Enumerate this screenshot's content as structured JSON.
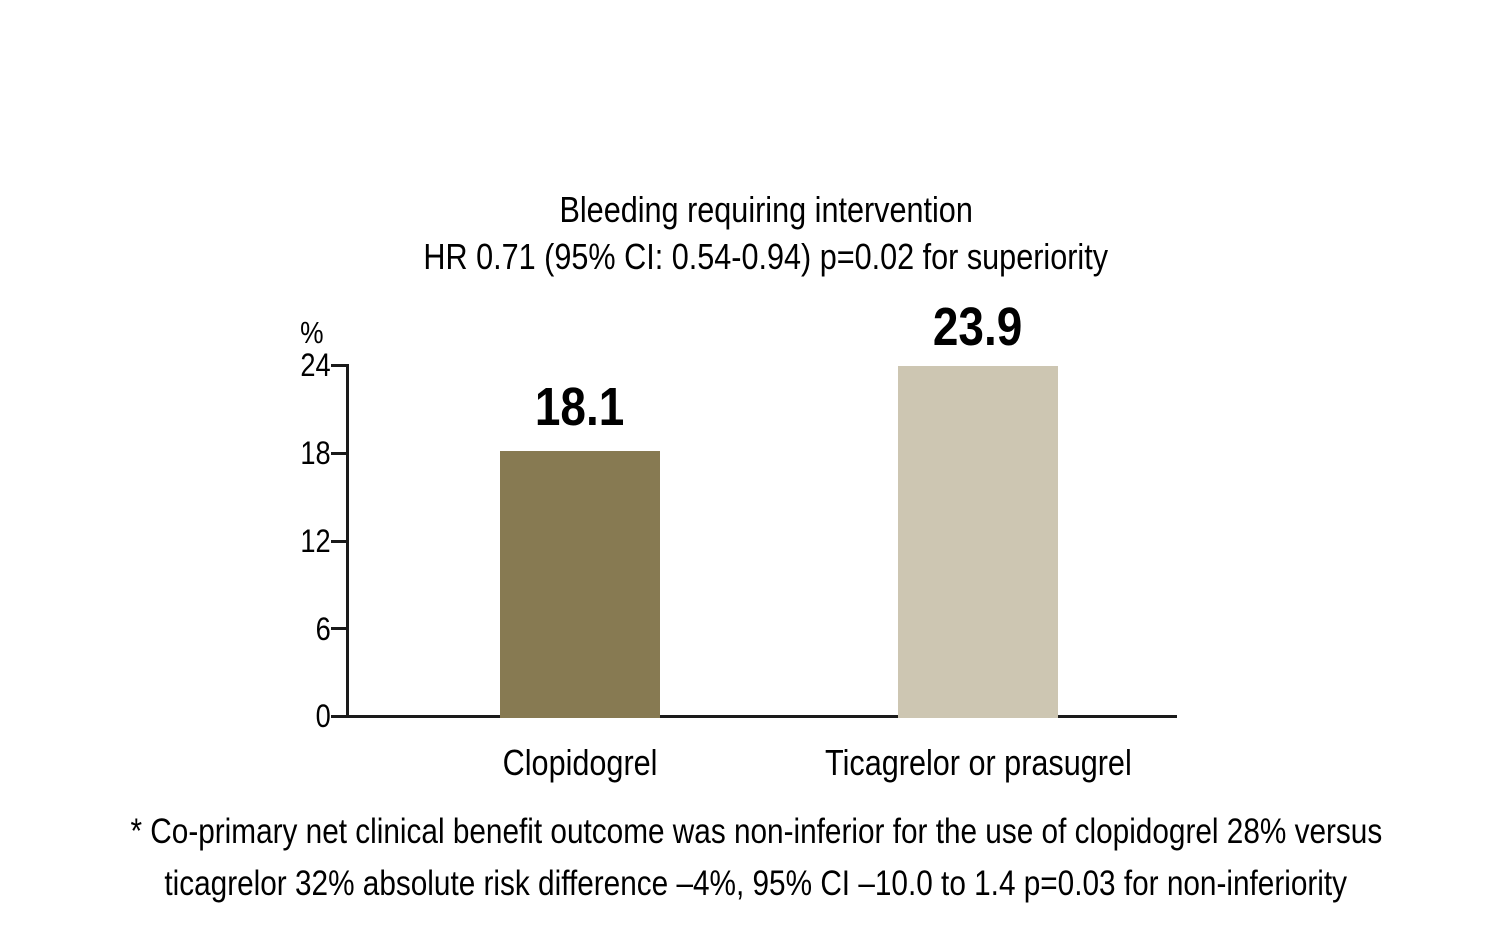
{
  "chart": {
    "title": "Bleeding requiring intervention",
    "subtitle": "HR 0.71 (95% CI: 0.54-0.94) p=0.02 for superiority",
    "unit_label": "%",
    "y_ticks": [
      "24",
      "18",
      "12",
      "6",
      "0"
    ],
    "axis_color": "#1a1a1a",
    "bars": [
      {
        "label": "Clopidogrel",
        "value_label": "18.1",
        "color": "#877a52"
      },
      {
        "label": "Ticagrelor or prasugrel",
        "value_label": "23.9",
        "color": "#cdc6b2"
      }
    ]
  },
  "footnote": {
    "line1": "* Co-primary net clinical benefit outcome was non-inferior for the use of clopidogrel 28% versus",
    "line2": "ticagrelor 32% absolute risk difference –4%, 95% CI –10.0 to 1.4 p=0.03 for non-inferiority"
  },
  "chart_data": {
    "type": "bar",
    "categories": [
      "Clopidogrel",
      "Ticagrelor or prasugrel"
    ],
    "values": [
      18.1,
      23.9
    ],
    "title": "Bleeding requiring intervention",
    "subtitle": "HR 0.71 (95% CI: 0.54-0.94) p=0.02 for superiority",
    "xlabel": "",
    "ylabel": "%",
    "ylim": [
      0,
      24
    ],
    "yticks": [
      0,
      6,
      12,
      18,
      24
    ],
    "bar_colors": [
      "#877a52",
      "#cdc6b2"
    ],
    "data_labels": [
      "18.1",
      "23.9"
    ],
    "grid": false,
    "legend_position": "none",
    "footnote": "* Co-primary net clinical benefit outcome was non-inferior for the use of clopidogrel 28% versus ticagrelor 32% absolute risk difference –4%, 95% CI –10.0 to 1.4 p=0.03 for non-inferiority"
  }
}
